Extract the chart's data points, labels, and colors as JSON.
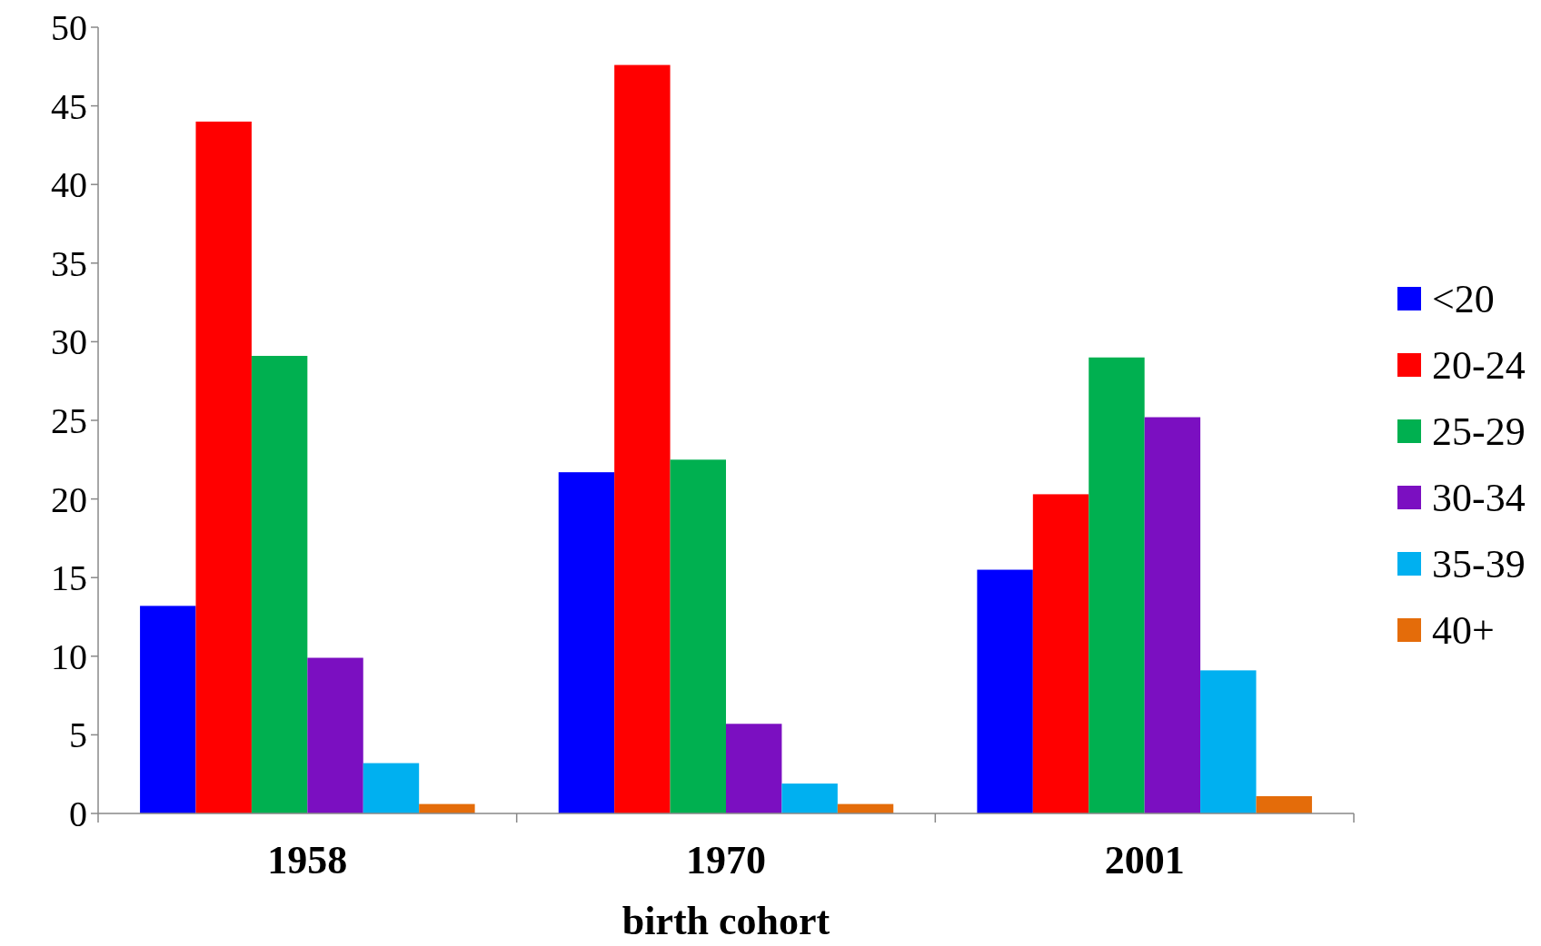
{
  "chart_data": {
    "type": "bar",
    "xlabel": "birth cohort",
    "categories": [
      "1958",
      "1970",
      "2001"
    ],
    "series": [
      {
        "name": "<20",
        "color": "#0000ff",
        "values": [
          13.2,
          21.7,
          15.5
        ]
      },
      {
        "name": "20-24",
        "color": "#ff0000",
        "values": [
          44.0,
          47.6,
          20.3
        ]
      },
      {
        "name": "25-29",
        "color": "#00b050",
        "values": [
          29.1,
          22.5,
          29.0
        ]
      },
      {
        "name": "30-34",
        "color": "#7b0fc1",
        "values": [
          9.9,
          5.7,
          25.2
        ]
      },
      {
        "name": "35-39",
        "color": "#00b0f0",
        "values": [
          3.2,
          1.9,
          9.1
        ]
      },
      {
        "name": "40+",
        "color": "#e46c0a",
        "values": [
          0.6,
          0.6,
          1.1
        ]
      }
    ],
    "ylim": [
      0,
      50
    ],
    "yticks": [
      0,
      5,
      10,
      15,
      20,
      25,
      30,
      35,
      40,
      45,
      50
    ],
    "grid": false,
    "legend": "right"
  }
}
